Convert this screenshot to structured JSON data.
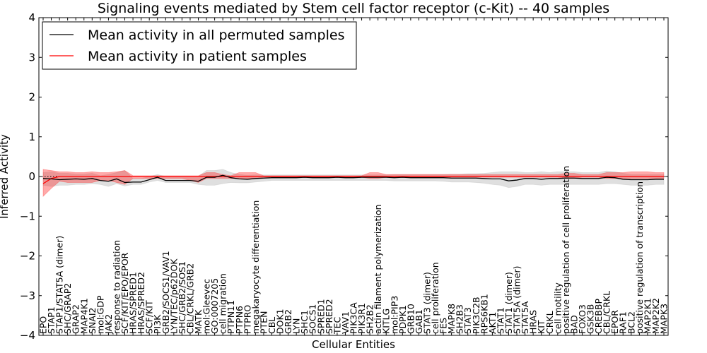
{
  "chart_data": {
    "type": "line",
    "title": "Signaling events mediated by Stem cell factor receptor (c-Kit) -- 40 samples",
    "xlabel": "Cellular Entities",
    "ylabel": "Inferred Activity",
    "ylim": [
      -4,
      4
    ],
    "yticks": [
      "4",
      "3",
      "2",
      "1",
      "0",
      "−1",
      "−2",
      "−3",
      "−4"
    ],
    "ytick_values": [
      4,
      3,
      2,
      1,
      0,
      -1,
      -2,
      -3,
      -4
    ],
    "legend": {
      "placement": "top-left",
      "entries": [
        {
          "label": "Mean activity in all permuted samples",
          "color": "#000000"
        },
        {
          "label": "Mean activity in patient samples",
          "color": "#ff0000"
        }
      ]
    },
    "categories": [
      "EPO",
      "STAP1",
      "STAP1/STAT5A (dimer)",
      "SHC/GRAP2",
      "GRAP2",
      "MAP4K1",
      "SNAI2",
      "mol:GDP",
      "JAK2",
      "response to radiation",
      "SCF/KIT/EPO/EPOR",
      "HRAS/SPRED1",
      "HRAS/SPRED2",
      "SCF/KIT",
      "PI3K",
      "GRB2/SOCS1/VAV1",
      "LYN/TEC/p62DOK",
      "SHC/GRB2/SOS1",
      "CBL/CRKL/GRB2",
      "MATK",
      "mol:Gleevec",
      "GO:0007205",
      "cell migration",
      "PTPN11",
      "PTPN6",
      "PTPRO",
      "megakaryocyte differentiation",
      "PTEN",
      "CBL",
      "DOK1",
      "GRB2",
      "LYN",
      "SHC1",
      "SOCS1",
      "SPRED1",
      "SPRED2",
      "TEC",
      "VAV1",
      "PIK3CA",
      "PIK3R1",
      "SH2B2",
      "actin filament polymerization",
      "KITLG",
      "mol:PIP3",
      "PDPK1",
      "GRB10",
      "GAB1",
      "STAT3 (dimer)",
      "cell proliferation",
      "FES",
      "MAPK8",
      "SH2B3",
      "STAT3",
      "PIK3C2B",
      "RPS6KB1",
      "AKT1",
      "STAT1",
      "STAT1 (dimer)",
      "STAT5A (dimer)",
      "STAT5A",
      "HRAS",
      "KIT",
      "CRKL",
      "cell motility",
      "positive regulation of cell proliferation",
      "BAD",
      "FOXO3",
      "GSK3B",
      "CREBBP",
      "CBL/CRKL",
      "EPOR",
      "RAF1",
      "BCL2",
      "positive regulation of transcription",
      "MAP2K1",
      "MAP2K2",
      "MAPK3"
    ],
    "series": [
      {
        "name": "Mean activity in all permuted samples",
        "color": "#000000",
        "values": [
          -0.05,
          -0.06,
          -0.08,
          -0.07,
          -0.06,
          -0.07,
          -0.05,
          -0.1,
          -0.12,
          -0.06,
          -0.15,
          -0.14,
          -0.14,
          -0.08,
          -0.02,
          -0.1,
          -0.1,
          -0.1,
          -0.1,
          -0.12,
          -0.02,
          -0.02,
          0.03,
          -0.03,
          -0.06,
          -0.07,
          -0.05,
          -0.04,
          -0.03,
          -0.03,
          -0.03,
          -0.03,
          -0.02,
          -0.03,
          -0.03,
          -0.03,
          -0.02,
          -0.03,
          -0.03,
          -0.02,
          -0.02,
          -0.02,
          -0.02,
          -0.03,
          -0.02,
          -0.03,
          -0.03,
          -0.03,
          -0.03,
          -0.03,
          -0.04,
          -0.04,
          -0.04,
          -0.04,
          -0.05,
          -0.06,
          -0.06,
          -0.11,
          -0.09,
          -0.05,
          -0.05,
          -0.07,
          -0.05,
          -0.05,
          -0.04,
          -0.04,
          -0.05,
          -0.05,
          -0.05,
          -0.02,
          -0.03,
          -0.07,
          -0.08,
          -0.08,
          -0.08,
          -0.07,
          -0.07
        ],
        "lower": [
          -0.22,
          -0.25,
          -0.22,
          -0.22,
          -0.2,
          -0.2,
          -0.18,
          -0.2,
          -0.25,
          -0.18,
          -0.24,
          -0.2,
          -0.2,
          -0.14,
          -0.1,
          -0.15,
          -0.15,
          -0.15,
          -0.15,
          -0.2,
          -0.22,
          -0.22,
          -0.18,
          -0.15,
          -0.16,
          -0.16,
          -0.14,
          -0.12,
          -0.1,
          -0.1,
          -0.1,
          -0.1,
          -0.1,
          -0.1,
          -0.1,
          -0.1,
          -0.1,
          -0.1,
          -0.1,
          -0.1,
          -0.1,
          -0.1,
          -0.1,
          -0.11,
          -0.11,
          -0.11,
          -0.11,
          -0.11,
          -0.11,
          -0.12,
          -0.14,
          -0.14,
          -0.14,
          -0.15,
          -0.17,
          -0.2,
          -0.22,
          -0.28,
          -0.25,
          -0.2,
          -0.2,
          -0.22,
          -0.2,
          -0.2,
          -0.2,
          -0.2,
          -0.2,
          -0.2,
          -0.2,
          -0.18,
          -0.18,
          -0.2,
          -0.22,
          -0.22,
          -0.22,
          -0.2,
          -0.2
        ],
        "upper": [
          0.1,
          0.12,
          0.08,
          0.08,
          0.06,
          0.06,
          0.08,
          0.02,
          0.05,
          0.1,
          0.15,
          -0.05,
          -0.05,
          0.0,
          0.05,
          0.0,
          0.0,
          0.0,
          0.0,
          0.0,
          0.15,
          0.15,
          0.18,
          0.1,
          0.05,
          0.03,
          0.04,
          0.04,
          0.04,
          0.04,
          0.04,
          0.04,
          0.04,
          0.04,
          0.04,
          0.04,
          0.04,
          0.04,
          0.04,
          0.04,
          0.04,
          0.04,
          0.04,
          0.05,
          0.05,
          0.05,
          0.05,
          0.05,
          0.05,
          0.05,
          0.06,
          0.06,
          0.07,
          0.07,
          0.08,
          0.1,
          0.12,
          0.12,
          0.12,
          0.1,
          0.1,
          0.12,
          0.1,
          0.12,
          0.12,
          0.12,
          0.1,
          0.1,
          0.1,
          0.14,
          0.12,
          0.08,
          0.05,
          0.05,
          0.05,
          0.05,
          0.05
        ]
      },
      {
        "name": "Mean activity in patient samples",
        "color": "#ff0000",
        "values": [
          -0.18,
          -0.05,
          0.0,
          0.0,
          0.0,
          0.0,
          0.0,
          0.0,
          0.0,
          0.0,
          0.0,
          0.0,
          0.0,
          0.0,
          0.0,
          0.0,
          0.0,
          0.0,
          0.0,
          0.0,
          0.0,
          0.0,
          0.0,
          0.0,
          0.0,
          0.0,
          0.0,
          0.0,
          0.0,
          0.0,
          0.0,
          0.0,
          0.0,
          0.0,
          0.0,
          0.0,
          0.0,
          0.0,
          0.0,
          0.0,
          0.0,
          0.0,
          0.0,
          0.0,
          0.0,
          0.0,
          0.0,
          0.0,
          0.0,
          0.0,
          0.0,
          0.0,
          0.0,
          0.0,
          0.0,
          0.0,
          0.0,
          0.0,
          0.0,
          0.0,
          0.0,
          0.0,
          0.0,
          0.0,
          0.0,
          0.0,
          0.0,
          0.0,
          0.0,
          0.0,
          0.0,
          0.0,
          0.0,
          0.0,
          0.0,
          0.0,
          0.0
        ],
        "lower": [
          -0.5,
          -0.3,
          -0.12,
          -0.15,
          -0.15,
          -0.15,
          -0.15,
          -0.1,
          -0.1,
          -0.15,
          -0.2,
          -0.05,
          -0.05,
          -0.05,
          -0.05,
          -0.05,
          -0.05,
          -0.05,
          -0.1,
          -0.15,
          -0.05,
          -0.05,
          -0.05,
          -0.05,
          -0.05,
          -0.05,
          -0.05,
          -0.02,
          -0.02,
          -0.02,
          -0.02,
          -0.02,
          -0.02,
          -0.02,
          -0.02,
          -0.02,
          -0.02,
          -0.02,
          -0.02,
          -0.02,
          -0.05,
          -0.05,
          -0.02,
          -0.02,
          -0.02,
          -0.02,
          -0.02,
          -0.02,
          -0.02,
          -0.02,
          -0.02,
          -0.02,
          -0.02,
          -0.02,
          -0.02,
          -0.02,
          -0.02,
          -0.02,
          -0.02,
          -0.02,
          -0.02,
          -0.02,
          -0.02,
          -0.02,
          -0.05,
          -0.05,
          -0.02,
          -0.02,
          -0.02,
          -0.05,
          -0.05,
          -0.05,
          -0.05,
          -0.05,
          -0.05,
          -0.05,
          -0.05
        ],
        "upper": [
          0.18,
          0.15,
          0.12,
          0.12,
          0.1,
          0.1,
          0.12,
          0.1,
          0.1,
          0.12,
          0.15,
          0.02,
          0.02,
          0.02,
          0.02,
          0.02,
          0.02,
          0.02,
          0.02,
          0.02,
          0.1,
          0.1,
          0.05,
          0.02,
          0.1,
          0.1,
          0.1,
          0.02,
          0.02,
          0.02,
          0.02,
          0.02,
          0.02,
          0.02,
          0.02,
          0.02,
          0.02,
          0.02,
          0.02,
          0.02,
          0.1,
          0.1,
          0.05,
          0.05,
          0.05,
          0.05,
          0.05,
          0.05,
          0.05,
          0.05,
          0.05,
          0.05,
          0.05,
          0.05,
          0.05,
          0.05,
          0.05,
          0.05,
          0.05,
          0.05,
          0.05,
          0.05,
          0.05,
          0.05,
          0.08,
          0.08,
          0.05,
          0.05,
          0.05,
          0.1,
          0.1,
          0.1,
          0.12,
          0.12,
          0.12,
          0.1,
          0.1
        ]
      }
    ]
  }
}
